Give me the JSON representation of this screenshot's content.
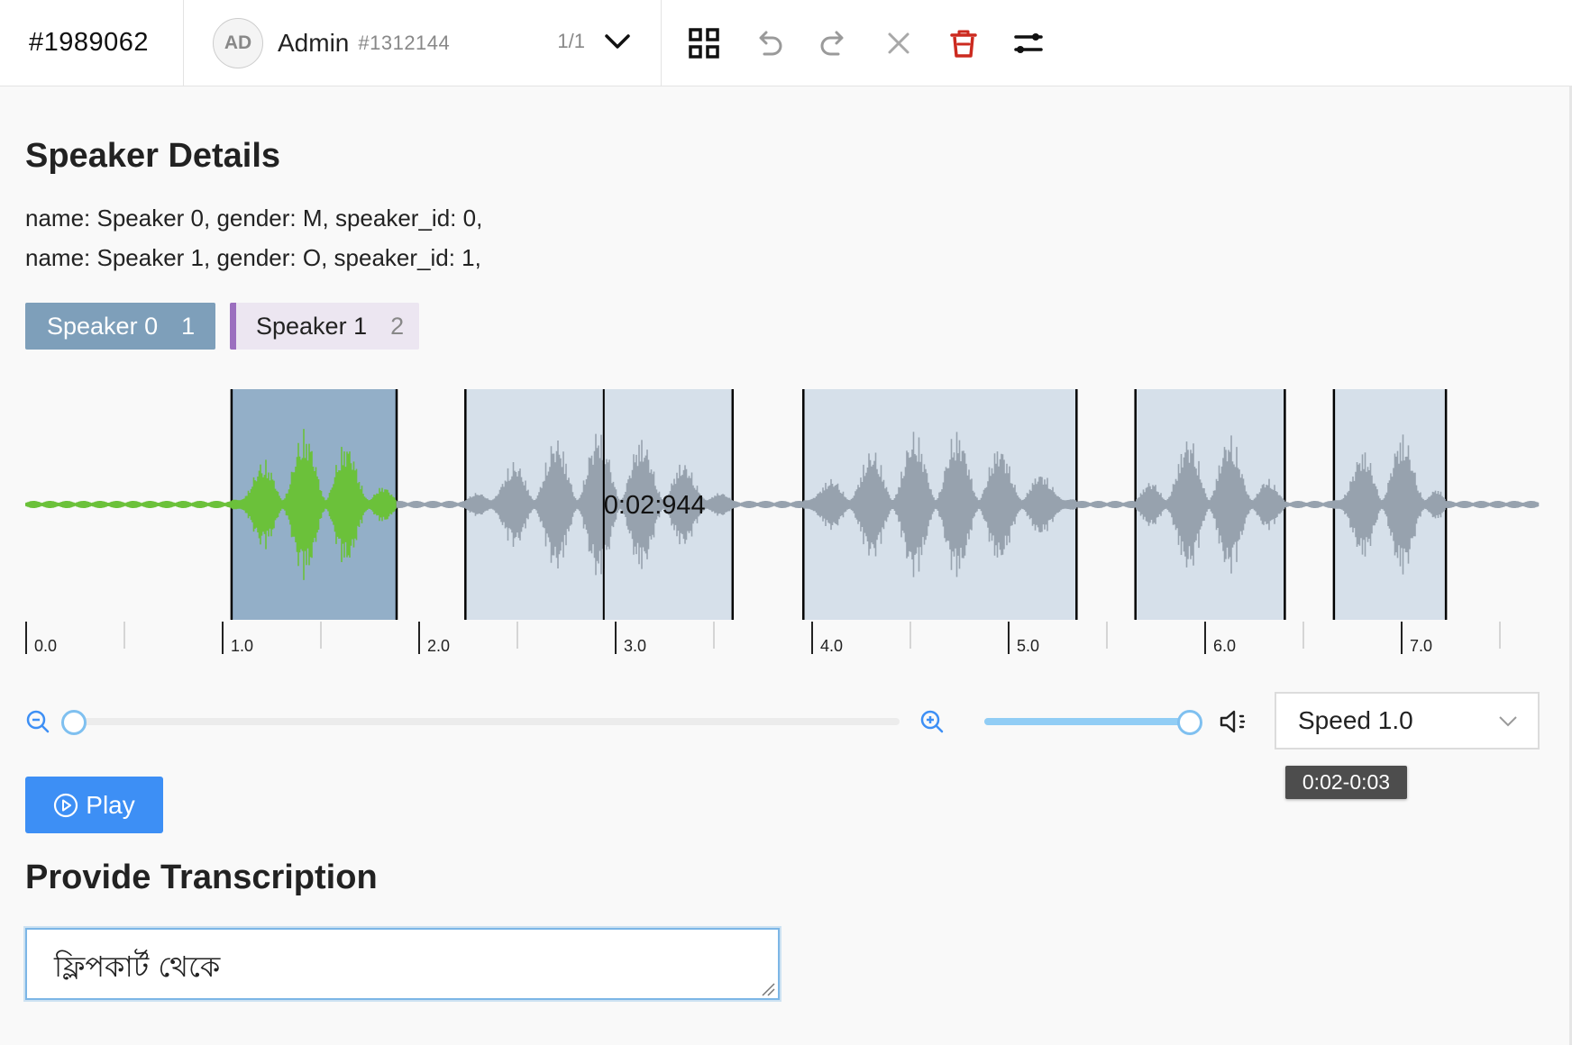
{
  "header": {
    "task_id": "#1989062",
    "annotator": {
      "initials": "AD",
      "name": "Admin",
      "id": "#1312144",
      "pager": "1/1"
    },
    "toolbar": [
      "grid-icon",
      "undo-icon",
      "redo-icon",
      "close-icon",
      "trash-icon",
      "settings-sliders-icon"
    ]
  },
  "speaker_details": {
    "title": "Speaker Details",
    "lines": [
      "name: Speaker 0, gender: M, speaker_id: 0,",
      "name: Speaker 1, gender: O, speaker_id: 1,"
    ]
  },
  "speaker_labels": [
    {
      "label": "Speaker 0",
      "count": "1",
      "color": "#7e9fba"
    },
    {
      "label": "Speaker 1",
      "count": "2",
      "color": "#9b6fbf"
    }
  ],
  "waveform": {
    "duration": 7.7,
    "regions": [
      {
        "start": 1.05,
        "end": 1.89,
        "selected": true
      },
      {
        "start": 2.24,
        "end": 3.6,
        "selected": false
      },
      {
        "start": 3.96,
        "end": 5.35,
        "selected": false
      },
      {
        "start": 5.65,
        "end": 6.41,
        "selected": false
      },
      {
        "start": 6.66,
        "end": 7.23,
        "selected": false
      }
    ],
    "cursor_time": 2.944,
    "cursor_label": "0:02:944",
    "timeline_labels": [
      "0.0",
      "1.0",
      "2.0",
      "3.0",
      "4.0",
      "5.0",
      "6.0",
      "7.0"
    ],
    "played_color": "#6bc13a",
    "wave_color": "#97a2ae"
  },
  "controls": {
    "zoom_level": 0.0,
    "volume_level": 1.0,
    "speed_label": "Speed 1.0",
    "tooltip": "0:02-0:03",
    "play_label": "Play"
  },
  "transcription": {
    "title": "Provide Transcription",
    "value": "ফ্লিপকার্ট থেকে"
  }
}
